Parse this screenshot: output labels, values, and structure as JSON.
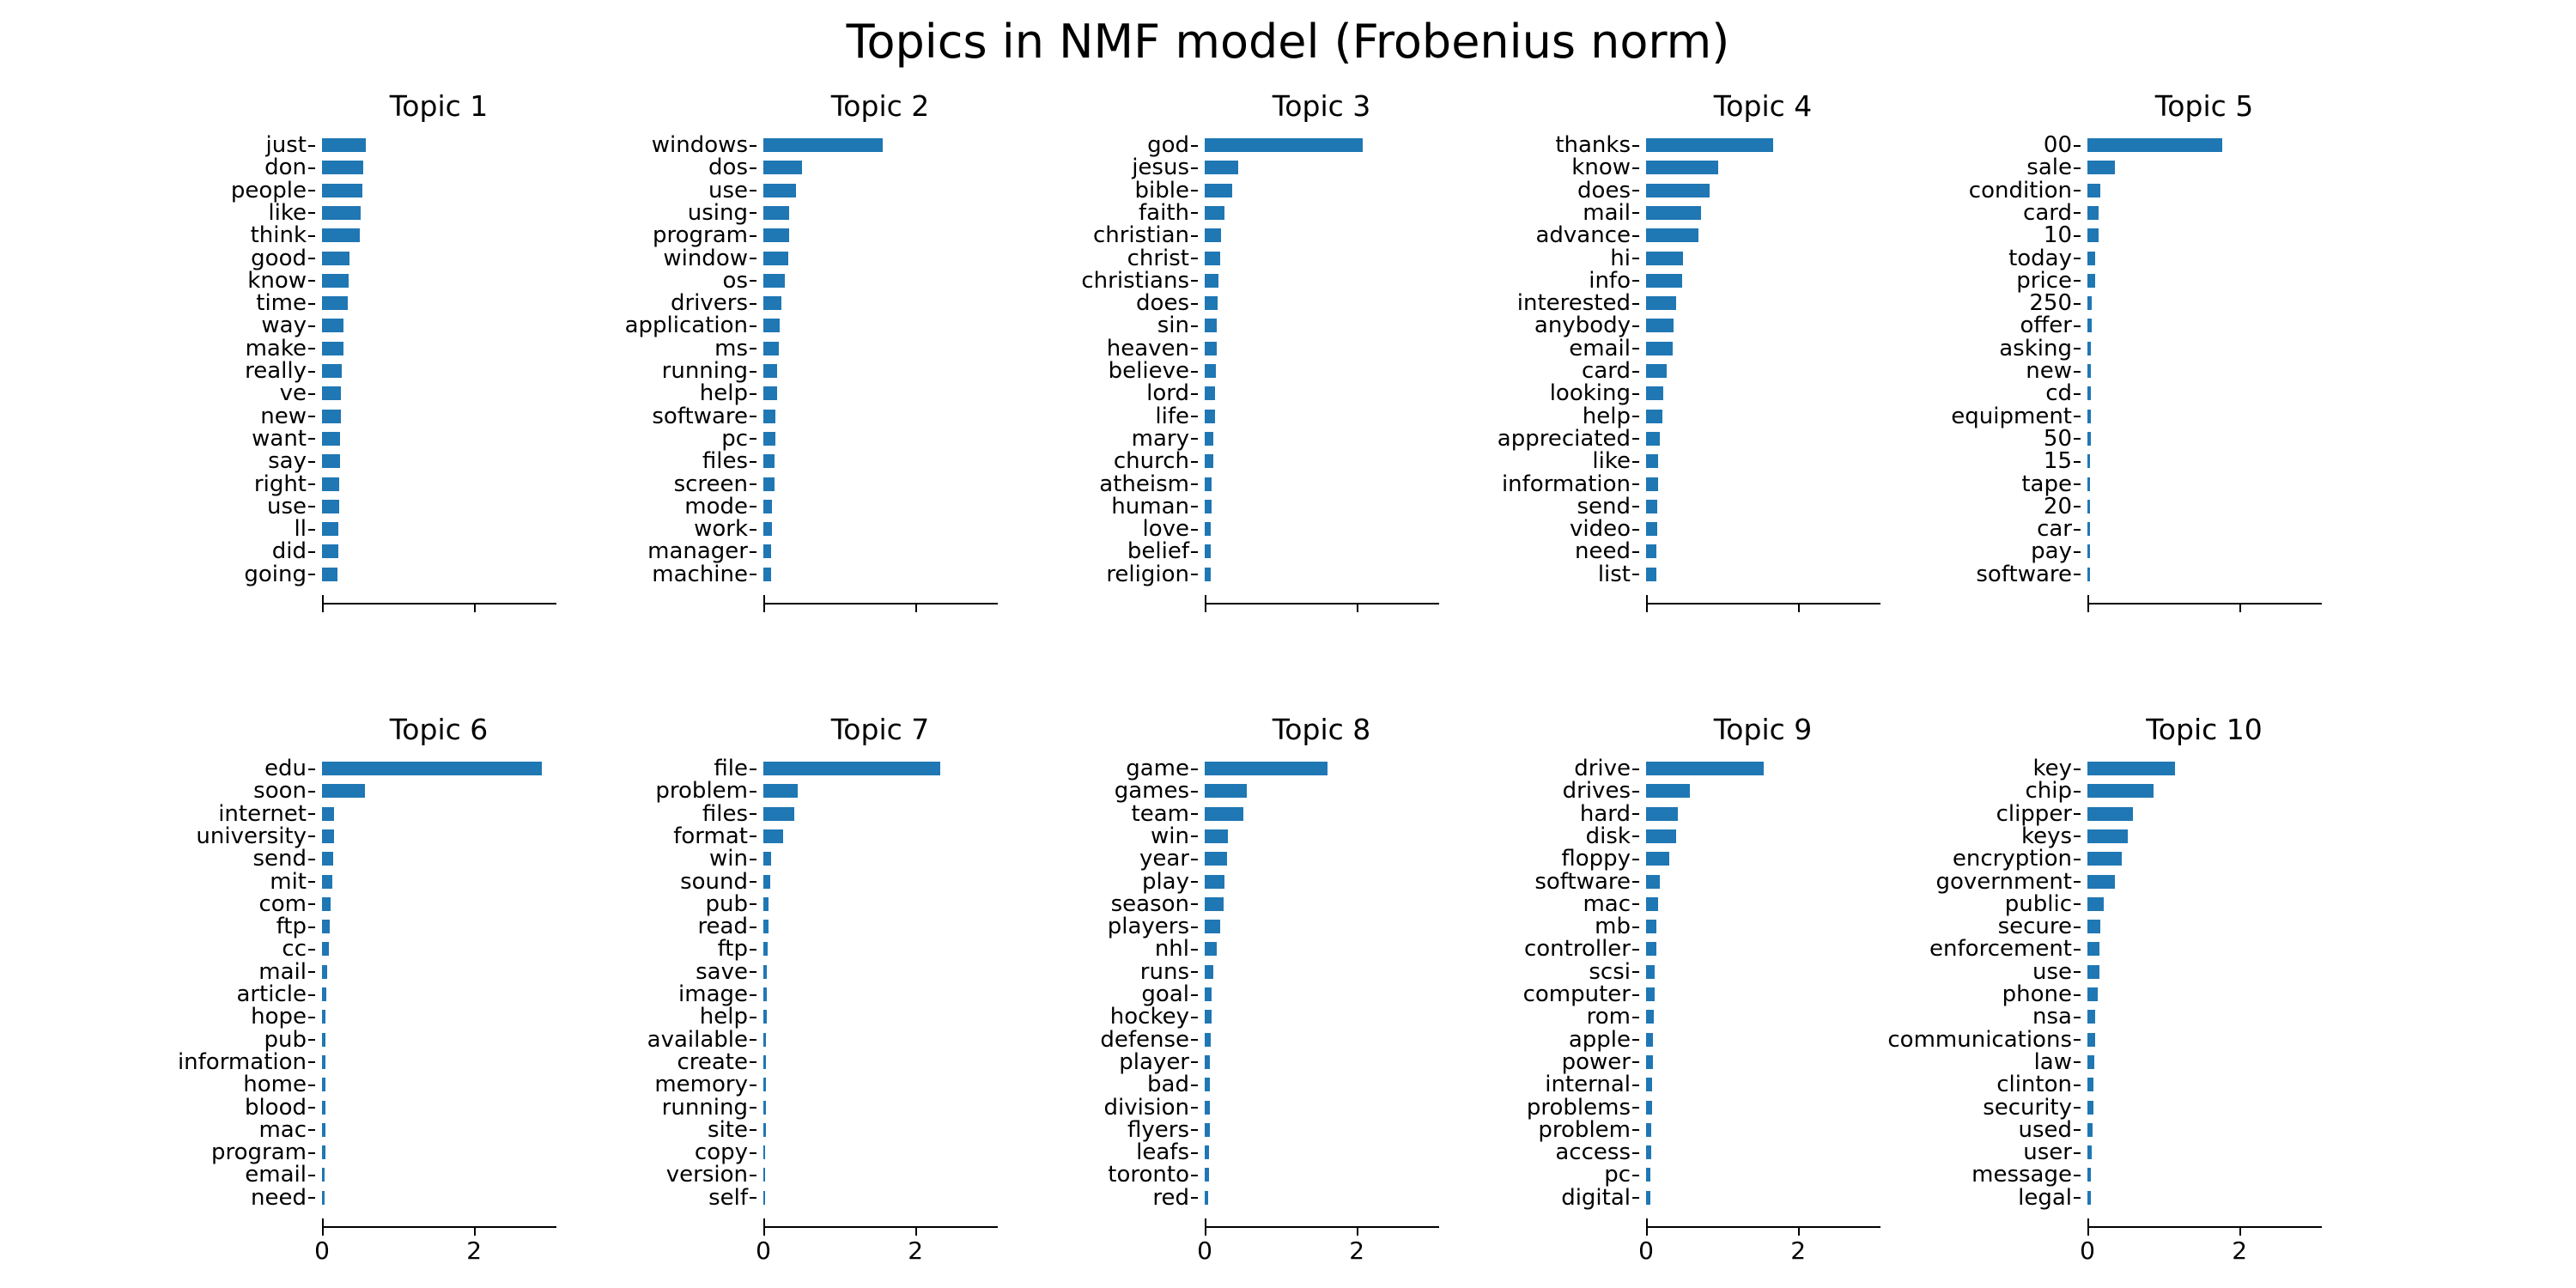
{
  "figure": {
    "suptitle": "Topics in NMF model (Frobenius norm)",
    "background_color": "#ffffff",
    "text_color": "#000000"
  },
  "axis": {
    "bar_color": "#1f77b4",
    "xlim": [
      0,
      3.07
    ],
    "xtick_values": [
      0,
      2
    ],
    "xtick_labels": [
      "0",
      "2"
    ],
    "xtick_labels_visible_rows": "bottom row only",
    "grid": false,
    "orientation": "horizontal bars, largest on top"
  },
  "chart_data": [
    {
      "type": "bar",
      "title": "Topic 1",
      "categories": [
        "just",
        "don",
        "people",
        "like",
        "think",
        "good",
        "know",
        "time",
        "way",
        "make",
        "really",
        "ve",
        "new",
        "want",
        "say",
        "right",
        "use",
        "ll",
        "did",
        "going"
      ],
      "values": [
        0.57,
        0.54,
        0.53,
        0.51,
        0.5,
        0.36,
        0.35,
        0.34,
        0.28,
        0.28,
        0.26,
        0.25,
        0.25,
        0.24,
        0.24,
        0.23,
        0.23,
        0.22,
        0.22,
        0.2
      ],
      "xlabel": "",
      "ylabel": "",
      "xlim": [
        0,
        3.07
      ]
    },
    {
      "type": "bar",
      "title": "Topic 2",
      "categories": [
        "windows",
        "dos",
        "use",
        "using",
        "program",
        "window",
        "os",
        "drivers",
        "application",
        "ms",
        "running",
        "help",
        "software",
        "pc",
        "files",
        "screen",
        "mode",
        "work",
        "manager",
        "machine"
      ],
      "values": [
        1.57,
        0.51,
        0.43,
        0.34,
        0.34,
        0.33,
        0.28,
        0.24,
        0.21,
        0.2,
        0.18,
        0.18,
        0.16,
        0.16,
        0.15,
        0.15,
        0.11,
        0.11,
        0.1,
        0.1
      ],
      "xlabel": "",
      "ylabel": "",
      "xlim": [
        0,
        3.07
      ]
    },
    {
      "type": "bar",
      "title": "Topic 3",
      "categories": [
        "god",
        "jesus",
        "bible",
        "faith",
        "christian",
        "christ",
        "christians",
        "does",
        "sin",
        "heaven",
        "believe",
        "lord",
        "life",
        "mary",
        "church",
        "atheism",
        "human",
        "love",
        "belief",
        "religion"
      ],
      "values": [
        2.08,
        0.44,
        0.36,
        0.26,
        0.21,
        0.2,
        0.18,
        0.17,
        0.16,
        0.16,
        0.15,
        0.13,
        0.13,
        0.11,
        0.11,
        0.09,
        0.09,
        0.08,
        0.08,
        0.08
      ],
      "xlabel": "",
      "ylabel": "",
      "xlim": [
        0,
        3.07
      ]
    },
    {
      "type": "bar",
      "title": "Topic 4",
      "categories": [
        "thanks",
        "know",
        "does",
        "mail",
        "advance",
        "hi",
        "info",
        "interested",
        "anybody",
        "email",
        "card",
        "looking",
        "help",
        "appreciated",
        "like",
        "information",
        "send",
        "video",
        "need",
        "list"
      ],
      "values": [
        1.67,
        0.95,
        0.84,
        0.72,
        0.69,
        0.49,
        0.47,
        0.39,
        0.36,
        0.35,
        0.27,
        0.23,
        0.21,
        0.18,
        0.16,
        0.16,
        0.15,
        0.15,
        0.14,
        0.14
      ],
      "xlabel": "",
      "ylabel": "",
      "xlim": [
        0,
        3.07
      ]
    },
    {
      "type": "bar",
      "title": "Topic 5",
      "categories": [
        "00",
        "sale",
        "condition",
        "card",
        "10",
        "today",
        "price",
        "250",
        "offer",
        "asking",
        "new",
        "cd",
        "equipment",
        "50",
        "15",
        "tape",
        "20",
        "car",
        "pay",
        "software"
      ],
      "values": [
        1.77,
        0.36,
        0.17,
        0.15,
        0.15,
        0.1,
        0.1,
        0.06,
        0.06,
        0.05,
        0.04,
        0.04,
        0.04,
        0.04,
        0.03,
        0.03,
        0.03,
        0.03,
        0.03,
        0.03
      ],
      "xlabel": "",
      "ylabel": "",
      "xlim": [
        0,
        3.07
      ]
    },
    {
      "type": "bar",
      "title": "Topic 6",
      "categories": [
        "edu",
        "soon",
        "internet",
        "university",
        "send",
        "mit",
        "com",
        "ftp",
        "cc",
        "mail",
        "article",
        "hope",
        "pub",
        "information",
        "home",
        "blood",
        "mac",
        "program",
        "email",
        "need"
      ],
      "values": [
        2.89,
        0.56,
        0.16,
        0.16,
        0.15,
        0.13,
        0.11,
        0.1,
        0.09,
        0.07,
        0.06,
        0.05,
        0.05,
        0.05,
        0.04,
        0.04,
        0.04,
        0.04,
        0.03,
        0.03
      ],
      "xlabel": "",
      "ylabel": "",
      "xlim": [
        0,
        3.07
      ]
    },
    {
      "type": "bar",
      "title": "Topic 7",
      "categories": [
        "file",
        "problem",
        "files",
        "format",
        "win",
        "sound",
        "pub",
        "read",
        "ftp",
        "save",
        "image",
        "help",
        "available",
        "create",
        "memory",
        "running",
        "site",
        "copy",
        "version",
        "self"
      ],
      "values": [
        2.33,
        0.45,
        0.41,
        0.26,
        0.1,
        0.09,
        0.07,
        0.07,
        0.06,
        0.05,
        0.04,
        0.04,
        0.03,
        0.03,
        0.03,
        0.03,
        0.03,
        0.02,
        0.02,
        0.02
      ],
      "xlabel": "",
      "ylabel": "",
      "xlim": [
        0,
        3.07
      ]
    },
    {
      "type": "bar",
      "title": "Topic 8",
      "categories": [
        "game",
        "games",
        "team",
        "win",
        "year",
        "play",
        "season",
        "players",
        "nhl",
        "runs",
        "goal",
        "hockey",
        "defense",
        "player",
        "bad",
        "division",
        "flyers",
        "leafs",
        "toronto",
        "red"
      ],
      "values": [
        1.61,
        0.55,
        0.51,
        0.31,
        0.29,
        0.26,
        0.25,
        0.2,
        0.16,
        0.11,
        0.09,
        0.09,
        0.08,
        0.07,
        0.07,
        0.07,
        0.07,
        0.06,
        0.06,
        0.05
      ],
      "xlabel": "",
      "ylabel": "",
      "xlim": [
        0,
        3.07
      ]
    },
    {
      "type": "bar",
      "title": "Topic 9",
      "categories": [
        "drive",
        "drives",
        "hard",
        "disk",
        "floppy",
        "software",
        "mac",
        "mb",
        "controller",
        "scsi",
        "computer",
        "rom",
        "apple",
        "power",
        "internal",
        "problems",
        "problem",
        "access",
        "pc",
        "digital"
      ],
      "values": [
        1.55,
        0.58,
        0.42,
        0.4,
        0.3,
        0.18,
        0.16,
        0.13,
        0.13,
        0.11,
        0.11,
        0.1,
        0.09,
        0.09,
        0.08,
        0.08,
        0.07,
        0.07,
        0.06,
        0.06
      ],
      "xlabel": "",
      "ylabel": "",
      "xlim": [
        0,
        3.07
      ]
    },
    {
      "type": "bar",
      "title": "Topic 10",
      "categories": [
        "key",
        "chip",
        "clipper",
        "keys",
        "encryption",
        "government",
        "public",
        "secure",
        "enforcement",
        "use",
        "phone",
        "nsa",
        "communications",
        "law",
        "clinton",
        "security",
        "used",
        "user",
        "message",
        "legal"
      ],
      "values": [
        1.15,
        0.87,
        0.6,
        0.53,
        0.45,
        0.36,
        0.22,
        0.17,
        0.16,
        0.16,
        0.13,
        0.1,
        0.1,
        0.09,
        0.08,
        0.08,
        0.07,
        0.06,
        0.05,
        0.05
      ],
      "xlabel": "",
      "ylabel": "",
      "xlim": [
        0,
        3.07
      ]
    }
  ]
}
